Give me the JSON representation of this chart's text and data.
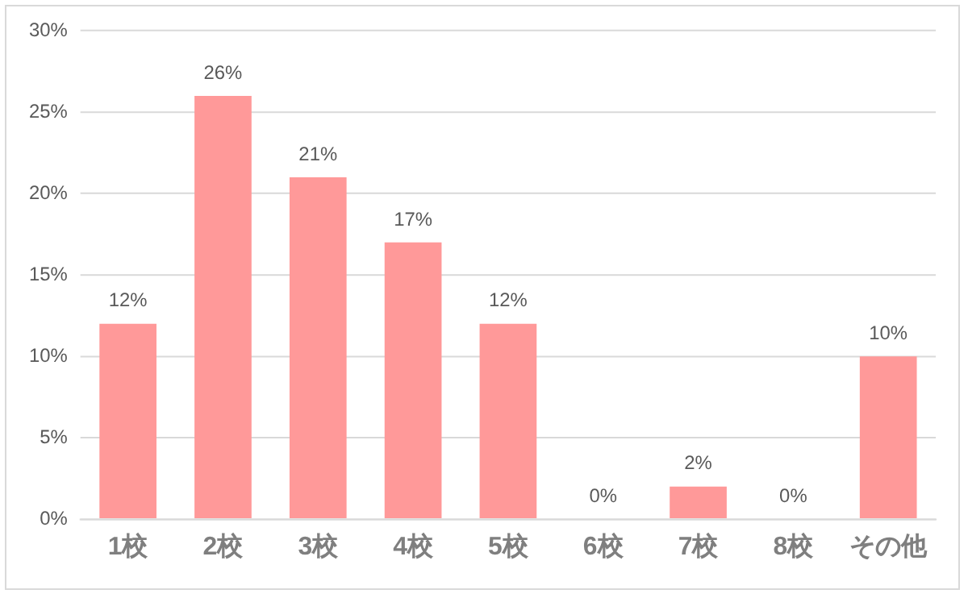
{
  "chart_data": {
    "type": "bar",
    "categories": [
      "1校",
      "2校",
      "3校",
      "4校",
      "5校",
      "6校",
      "7校",
      "8校",
      "その他"
    ],
    "values": [
      12,
      26,
      21,
      17,
      12,
      0,
      2,
      0,
      10
    ],
    "value_labels": [
      "12%",
      "26%",
      "21%",
      "17%",
      "12%",
      "0%",
      "2%",
      "0%",
      "10%"
    ],
    "color": "#ff9999",
    "ylim": [
      0,
      30
    ],
    "yticks": [
      {
        "value": 0,
        "label": "0%"
      },
      {
        "value": 5,
        "label": "5%"
      },
      {
        "value": 10,
        "label": "10%"
      },
      {
        "value": 15,
        "label": "15%"
      },
      {
        "value": 20,
        "label": "20%"
      },
      {
        "value": 25,
        "label": "25%"
      },
      {
        "value": 30,
        "label": "30%"
      }
    ],
    "grid": "y",
    "legend": false
  }
}
